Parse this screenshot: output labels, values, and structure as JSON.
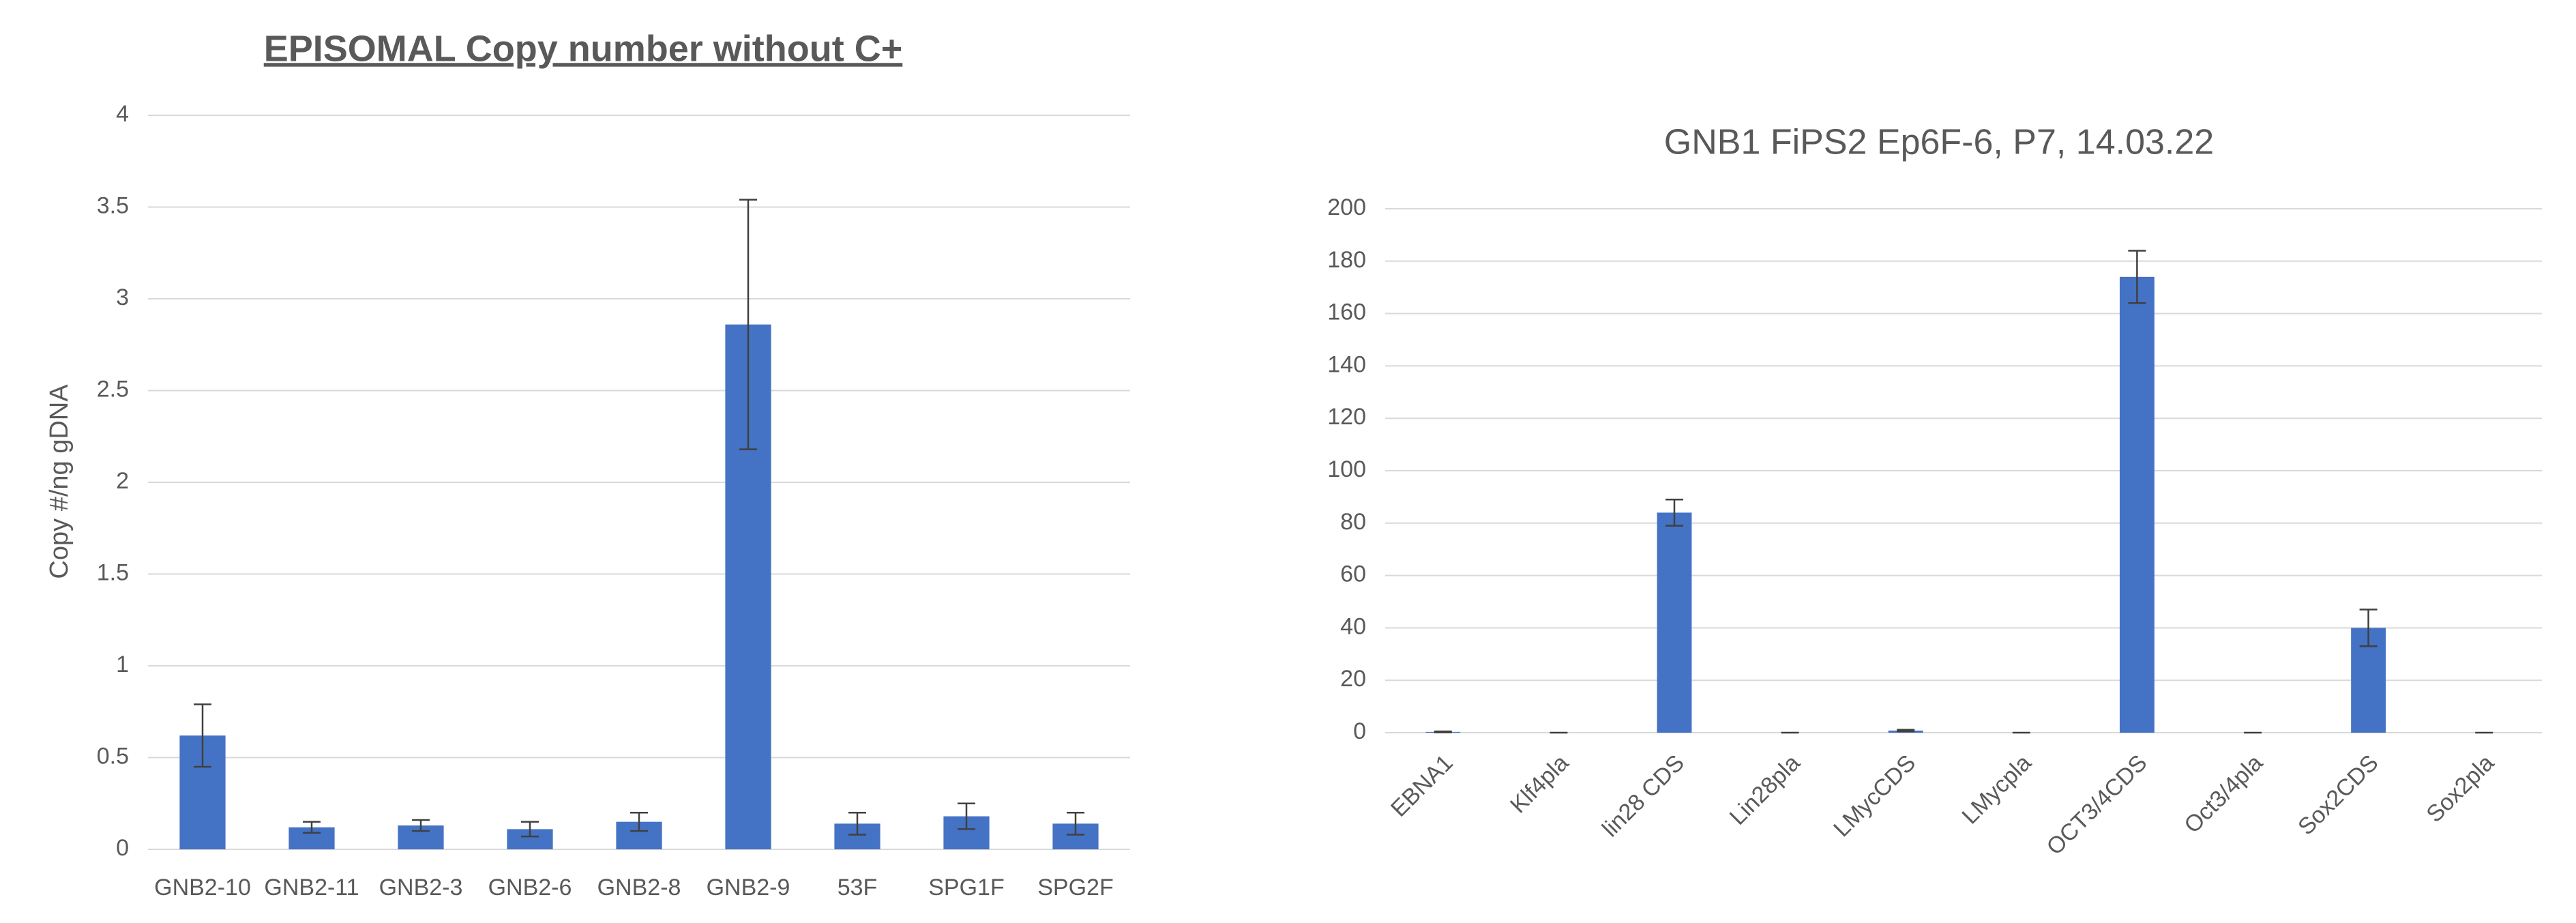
{
  "chart_data": [
    {
      "type": "bar",
      "title": "EPISOMAL Copy number without C+",
      "y_label": "Copy #/ng gDNA",
      "categories": [
        "GNB2-10",
        "GNB2-11",
        "GNB2-3",
        "GNB2-6",
        "GNB2-8",
        "GNB2-9",
        "53F",
        "SPG1F",
        "SPG2F"
      ],
      "values": [
        0.62,
        0.12,
        0.13,
        0.11,
        0.15,
        2.86,
        0.14,
        0.18,
        0.14
      ],
      "errors": [
        0.17,
        0.03,
        0.03,
        0.04,
        0.05,
        0.68,
        0.06,
        0.07,
        0.06
      ],
      "color": "#4472c4",
      "ylim": [
        0,
        4
      ],
      "yticks": [
        0,
        0.5,
        1,
        1.5,
        2,
        2.5,
        3,
        3.5,
        4
      ],
      "grid": true
    },
    {
      "type": "bar",
      "title": "GNB1 FiPS2 Ep6F-6, P7, 14.03.22",
      "categories": [
        "EBNA1",
        "Klf4pla",
        "lin28 CDS",
        "Lin28pla",
        "LMycCDS",
        "LMycpla",
        "OCT3/4CDS",
        "Oct3/4pla",
        "Sox2CDS",
        "Sox2pla"
      ],
      "values": [
        0.3,
        0,
        84,
        0,
        0.8,
        0,
        174,
        0,
        40,
        0
      ],
      "errors": [
        0.2,
        0,
        5,
        0,
        0.3,
        0,
        10,
        0,
        7,
        0
      ],
      "color": "#4472c4",
      "ylim": [
        0,
        200
      ],
      "yticks": [
        0,
        20,
        40,
        60,
        80,
        100,
        120,
        140,
        160,
        180,
        200
      ],
      "grid": true
    }
  ]
}
